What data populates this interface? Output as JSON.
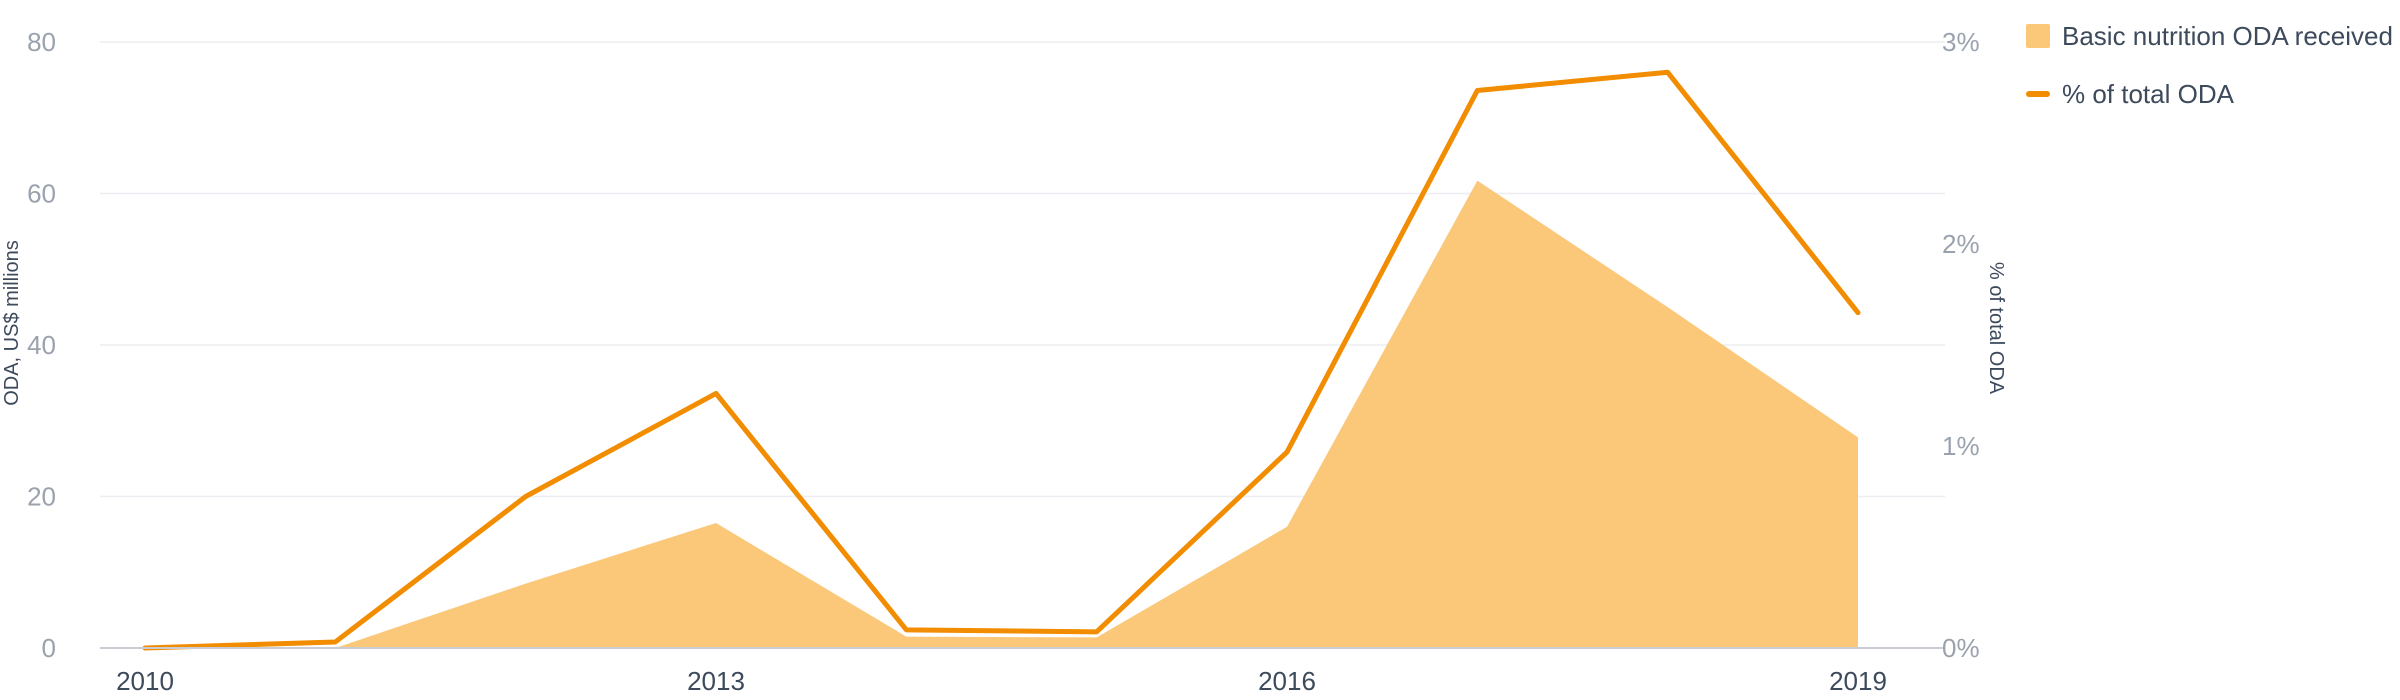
{
  "chart_data": {
    "type": "area",
    "x": [
      2010,
      2011,
      2012,
      2013,
      2014,
      2015,
      2016,
      2017,
      2018,
      2019
    ],
    "series": [
      {
        "name": "Basic nutrition ODA received",
        "type": "area",
        "axis": "left",
        "values": [
          0,
          0,
          8.5,
          16.5,
          1.5,
          1.4,
          16,
          61.7,
          45,
          27.8
        ],
        "color": "#fbc87a"
      },
      {
        "name": "% of total ODA",
        "type": "line",
        "axis": "right",
        "values": [
          0.0,
          0.03,
          0.75,
          1.26,
          0.09,
          0.08,
          0.97,
          2.76,
          2.85,
          1.66
        ],
        "color": "#f28c00"
      }
    ],
    "ylabel": "ODA, US$ millions",
    "ylabel_right": "% of total ODA",
    "ylim": [
      0,
      80
    ],
    "ylim_right": [
      0,
      3
    ],
    "yticks": [
      "0",
      "20",
      "40",
      "60",
      "80"
    ],
    "yticks_right": [
      "0%",
      "1%",
      "2%",
      "3%"
    ],
    "xticks": [
      "2010",
      "2013",
      "2016",
      "2019"
    ],
    "grid": true,
    "legend_position": "top-right"
  }
}
